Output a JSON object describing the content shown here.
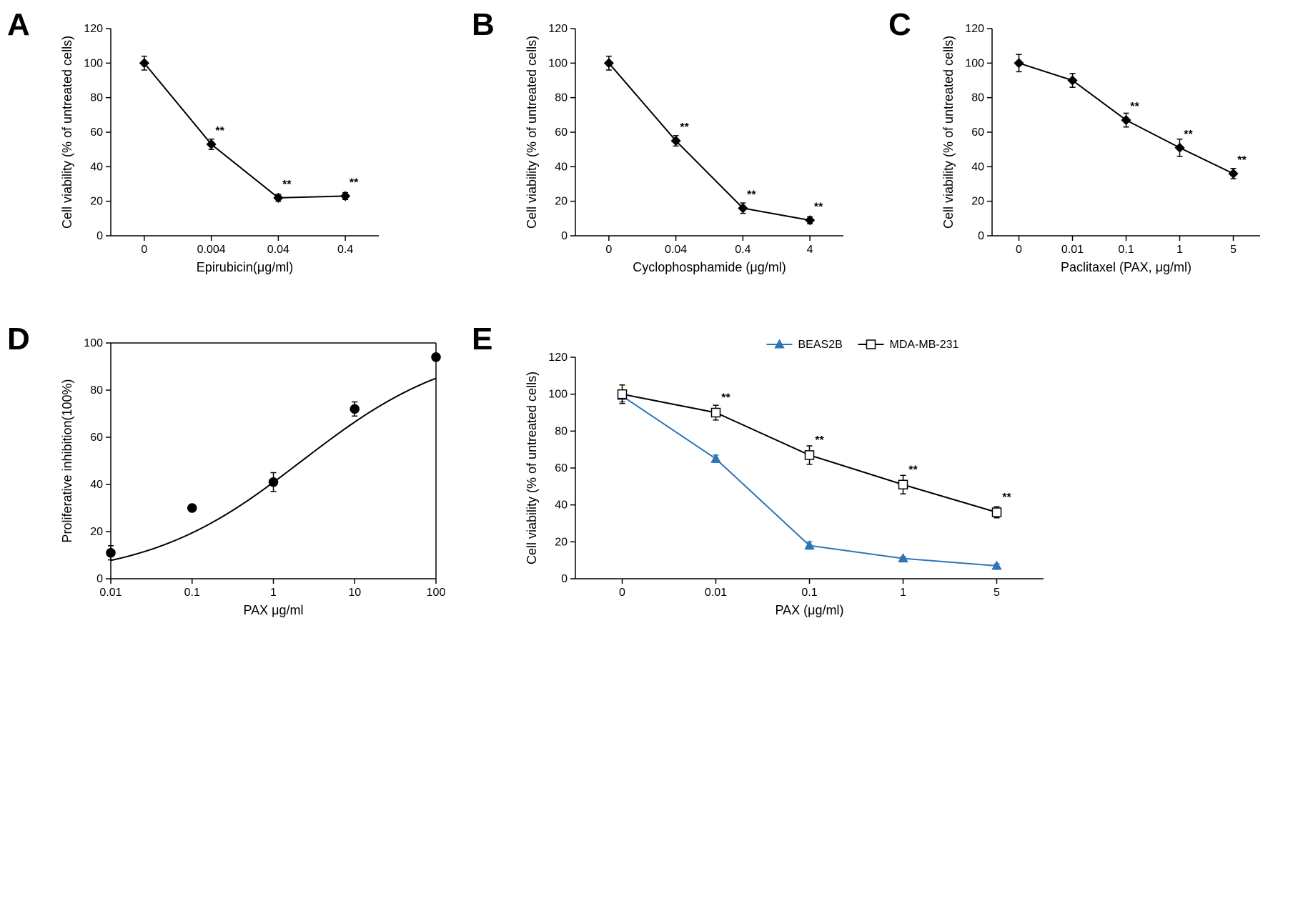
{
  "figure": {
    "background_color": "#ffffff",
    "panel_label_fontsize": 44,
    "panel_label_fontweight": "700",
    "axis_color": "#000000",
    "tick_fontsize": 16,
    "axis_title_fontsize": 18,
    "line_width": 2,
    "marker_size": 6,
    "error_cap_width": 8
  },
  "panels": {
    "A": {
      "label": "A",
      "type": "line",
      "x_categorical": true,
      "x_categories": [
        "0",
        "0.004",
        "0.04",
        "0.4"
      ],
      "y_values": [
        100,
        53,
        22,
        23
      ],
      "y_err": [
        4,
        3,
        2,
        2
      ],
      "significance": [
        "",
        "**",
        "**",
        "**"
      ],
      "ylim": [
        0,
        120
      ],
      "ytick_step": 20,
      "x_label": "Epirubicin(μg/ml)",
      "y_label": "Cell viability (% of untreated cells)",
      "marker": "diamond",
      "line_color": "#000000",
      "marker_fill": "#000000"
    },
    "B": {
      "label": "B",
      "type": "line",
      "x_categorical": true,
      "x_categories": [
        "0",
        "0.04",
        "0.4",
        "4"
      ],
      "y_values": [
        100,
        55,
        16,
        9
      ],
      "y_err": [
        4,
        3,
        3,
        2
      ],
      "significance": [
        "",
        "**",
        "**",
        "**"
      ],
      "ylim": [
        0,
        120
      ],
      "ytick_step": 20,
      "x_label": "Cyclophosphamide (μg/ml)",
      "y_label": "Cell viability (% of untreated cells)",
      "marker": "diamond",
      "line_color": "#000000",
      "marker_fill": "#000000"
    },
    "C": {
      "label": "C",
      "type": "line",
      "x_categorical": true,
      "x_categories": [
        "0",
        "0.01",
        "0.1",
        "1",
        "5"
      ],
      "y_values": [
        100,
        90,
        67,
        51,
        36
      ],
      "y_err": [
        5,
        4,
        4,
        5,
        3
      ],
      "significance": [
        "",
        "",
        "**",
        "**",
        "**"
      ],
      "ylim": [
        0,
        120
      ],
      "ytick_step": 20,
      "x_label": "Paclitaxel  (PAX, μg/ml)",
      "y_label": "Cell viability (% of untreated cells)",
      "marker": "diamond",
      "line_color": "#000000",
      "marker_fill": "#000000"
    },
    "D": {
      "label": "D",
      "type": "scatter-fit",
      "x_log": true,
      "x_ticks": [
        0.01,
        0.1,
        1,
        10,
        100
      ],
      "x_tick_labels": [
        "0.01",
        "0.1",
        "1",
        "10",
        "100"
      ],
      "y_values": [
        11,
        30,
        41,
        72,
        94
      ],
      "y_err": [
        3,
        0,
        4,
        3,
        0
      ],
      "ylim": [
        0,
        100
      ],
      "ytick_step": 20,
      "x_label": "PAX μg/ml",
      "y_label": "Proliferative inhibition(100%)",
      "marker": "circle",
      "line_color": "#000000",
      "marker_fill": "#000000",
      "fit_curve": true
    },
    "E": {
      "label": "E",
      "type": "line-multi",
      "x_categorical": true,
      "x_categories": [
        "0",
        "0.01",
        "0.1",
        "1",
        "5"
      ],
      "series": [
        {
          "name": "BEAS2B",
          "y_values": [
            99,
            65,
            18,
            11,
            7
          ],
          "y_err": [
            3,
            2,
            2,
            1,
            1
          ],
          "significance": [
            "",
            "",
            "",
            "",
            ""
          ],
          "color": "#2e75b6",
          "marker": "triangle",
          "marker_fill": "#2e75b6"
        },
        {
          "name": "MDA-MB-231",
          "y_values": [
            100,
            90,
            67,
            51,
            36
          ],
          "y_err": [
            5,
            4,
            5,
            5,
            3
          ],
          "significance": [
            "",
            "**",
            "**",
            "**",
            "**"
          ],
          "color": "#000000",
          "marker": "square-open",
          "marker_fill": "#ffffff"
        }
      ],
      "ylim": [
        0,
        120
      ],
      "ytick_step": 20,
      "x_label": "PAX (μg/ml)",
      "y_label": "Cell viability (% of untreated cells)",
      "legend_position": "top-right"
    }
  }
}
